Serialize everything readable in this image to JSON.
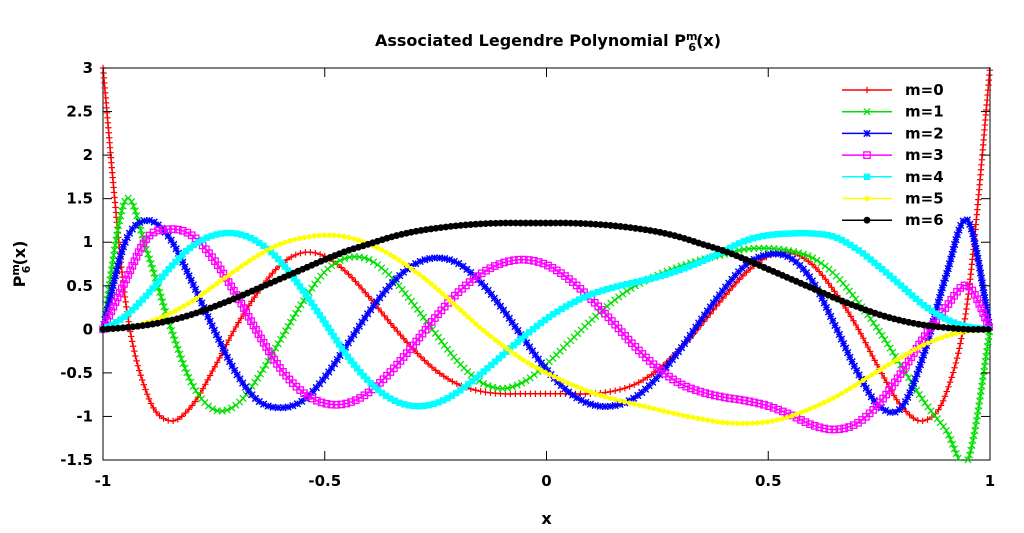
{
  "chart_data": {
    "type": "line",
    "title": "Associated Legendre Polynomial",
    "title_symbol": {
      "base": "P",
      "sup": "m",
      "sub": "6",
      "arg": "(x)"
    },
    "xlabel": "x",
    "ylabel_symbol": {
      "base": "P",
      "sup": "m",
      "sub": "6",
      "arg": "(x)"
    },
    "xlim": [
      -1,
      1
    ],
    "ylim": [
      -1.5,
      3
    ],
    "x_ticks": [
      -1,
      -0.5,
      0,
      0.5,
      1
    ],
    "x_tick_labels": [
      "-1",
      "-0.5",
      "0",
      "0.5",
      "1"
    ],
    "y_ticks": [
      -1.5,
      -1,
      -0.5,
      0,
      0.5,
      1,
      1.5,
      2,
      2.5,
      3
    ],
    "y_tick_labels": [
      "-1.5",
      "-1",
      "-0.5",
      "0",
      "0.5",
      "1",
      "1.5",
      "2",
      "2.5",
      "3"
    ],
    "grid": false,
    "legend_position": "top-right",
    "x": [
      -1,
      -0.95,
      -0.9,
      -0.85,
      -0.8,
      -0.75,
      -0.7,
      -0.65,
      -0.6,
      -0.55,
      -0.5,
      -0.45,
      -0.4,
      -0.35,
      -0.3,
      -0.25,
      -0.2,
      -0.15,
      -0.1,
      -0.05,
      0,
      0.05,
      0.1,
      0.15,
      0.2,
      0.25,
      0.3,
      0.35,
      0.4,
      0.45,
      0.5,
      0.55,
      0.6,
      0.65,
      0.7,
      0.75,
      0.8,
      0.85,
      0.9,
      0.95,
      1
    ],
    "series": [
      {
        "name": "m=0",
        "color": "#ff0000",
        "marker": "plus",
        "values": [
          3.0,
          0.35,
          -0.75,
          -1.05,
          -0.88,
          -0.45,
          0.03,
          0.43,
          0.74,
          0.88,
          0.84,
          0.65,
          0.37,
          0.06,
          -0.23,
          -0.47,
          -0.63,
          -0.71,
          -0.74,
          -0.74,
          -0.74,
          -0.74,
          -0.74,
          -0.71,
          -0.63,
          -0.47,
          -0.23,
          0.06,
          0.37,
          0.65,
          0.84,
          0.88,
          0.74,
          0.43,
          0.03,
          -0.45,
          -0.88,
          -1.05,
          -0.75,
          0.35,
          3.0
        ]
      },
      {
        "name": "m=1",
        "color": "#00e000",
        "marker": "x",
        "values": [
          0.0,
          1.48,
          0.88,
          0.06,
          -0.62,
          -0.92,
          -0.87,
          -0.55,
          -0.12,
          0.31,
          0.66,
          0.82,
          0.8,
          0.6,
          0.29,
          -0.05,
          -0.37,
          -0.6,
          -0.68,
          -0.6,
          -0.4,
          -0.15,
          0.1,
          0.32,
          0.5,
          0.62,
          0.72,
          0.8,
          0.86,
          0.92,
          0.93,
          0.9,
          0.82,
          0.63,
          0.33,
          -0.02,
          -0.42,
          -0.82,
          -1.15,
          -1.5,
          0.0
        ]
      },
      {
        "name": "m=2",
        "color": "#0000ff",
        "marker": "star",
        "values": [
          0.0,
          1.0,
          1.25,
          1.05,
          0.55,
          0.0,
          -0.5,
          -0.82,
          -0.9,
          -0.82,
          -0.55,
          -0.18,
          0.2,
          0.52,
          0.74,
          0.82,
          0.76,
          0.55,
          0.24,
          -0.12,
          -0.46,
          -0.72,
          -0.86,
          -0.88,
          -0.78,
          -0.55,
          -0.24,
          0.12,
          0.46,
          0.74,
          0.86,
          0.82,
          0.55,
          0.05,
          -0.48,
          -0.88,
          -0.9,
          -0.3,
          0.6,
          1.25,
          0.0
        ]
      },
      {
        "name": "m=3",
        "color": "#ff00ff",
        "marker": "square",
        "values": [
          0.0,
          0.55,
          1.05,
          1.15,
          1.08,
          0.8,
          0.4,
          -0.05,
          -0.45,
          -0.72,
          -0.85,
          -0.85,
          -0.72,
          -0.48,
          -0.18,
          0.14,
          0.42,
          0.63,
          0.76,
          0.8,
          0.74,
          0.58,
          0.35,
          0.08,
          -0.2,
          -0.44,
          -0.62,
          -0.72,
          -0.78,
          -0.82,
          -0.88,
          -0.98,
          -1.1,
          -1.15,
          -1.08,
          -0.85,
          -0.5,
          -0.1,
          0.25,
          0.5,
          0.0
        ]
      },
      {
        "name": "m=4",
        "color": "#00ffff",
        "marker": "filled-square",
        "values": [
          0.0,
          0.15,
          0.4,
          0.7,
          0.95,
          1.08,
          1.1,
          1.0,
          0.78,
          0.45,
          0.08,
          -0.3,
          -0.6,
          -0.8,
          -0.88,
          -0.85,
          -0.72,
          -0.52,
          -0.3,
          -0.08,
          0.12,
          0.28,
          0.4,
          0.48,
          0.54,
          0.6,
          0.68,
          0.78,
          0.9,
          1.02,
          1.08,
          1.1,
          1.1,
          1.06,
          0.92,
          0.72,
          0.5,
          0.28,
          0.12,
          0.03,
          0.0
        ]
      },
      {
        "name": "m=5",
        "color": "#ffff00",
        "marker": "dot",
        "values": [
          0.0,
          0.02,
          0.08,
          0.18,
          0.32,
          0.5,
          0.68,
          0.85,
          0.98,
          1.05,
          1.08,
          1.06,
          0.98,
          0.85,
          0.68,
          0.48,
          0.25,
          0.02,
          -0.18,
          -0.36,
          -0.5,
          -0.62,
          -0.72,
          -0.8,
          -0.86,
          -0.92,
          -0.98,
          -1.03,
          -1.07,
          -1.08,
          -1.06,
          -1.0,
          -0.9,
          -0.78,
          -0.63,
          -0.47,
          -0.32,
          -0.18,
          -0.08,
          -0.02,
          0.0
        ]
      },
      {
        "name": "m=6",
        "color": "#000000",
        "marker": "filled-circle",
        "values": [
          0.0,
          0.02,
          0.05,
          0.1,
          0.17,
          0.26,
          0.36,
          0.47,
          0.58,
          0.69,
          0.8,
          0.9,
          0.98,
          1.06,
          1.12,
          1.16,
          1.19,
          1.21,
          1.22,
          1.22,
          1.22,
          1.22,
          1.21,
          1.19,
          1.16,
          1.12,
          1.06,
          0.98,
          0.9,
          0.8,
          0.69,
          0.58,
          0.47,
          0.36,
          0.26,
          0.17,
          0.1,
          0.05,
          0.02,
          0.0,
          0.0
        ]
      }
    ]
  }
}
